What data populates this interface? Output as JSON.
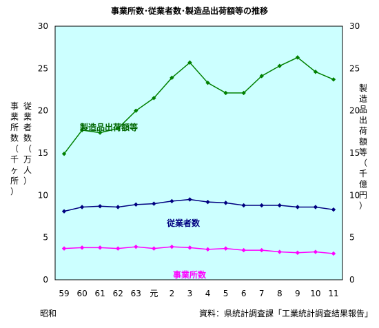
{
  "chart_data": {
    "type": "line",
    "title": "事業所数･従業者数･製造品出荷額等の推移",
    "categories": [
      "59",
      "60",
      "61",
      "62",
      "63",
      "元",
      "2",
      "3",
      "4",
      "5",
      "6",
      "7",
      "8",
      "9",
      "10",
      "11"
    ],
    "x_era_label": "昭和",
    "ylabel_left_col1": "従業者数（万人）",
    "ylabel_left_col2": "事業所数（千ヶ所）",
    "ylabel_right": "製造品出荷額等（千億円）",
    "ylim": [
      0,
      30
    ],
    "yticks_left": [
      "0",
      "5",
      "10",
      "15",
      "20",
      "25",
      "30"
    ],
    "yticks_right": [
      "0",
      "5",
      "10",
      "15",
      "20",
      "25",
      "30"
    ],
    "grid": false,
    "plot_background": "#ccffff",
    "source": "資料：県統計調査課「工業統計調査結果報告」",
    "series": [
      {
        "name": "製造品出荷額等",
        "color": "#008000",
        "label_color": "#006600",
        "values": [
          14.9,
          17.7,
          17.4,
          17.9,
          20.0,
          21.5,
          23.9,
          25.7,
          23.3,
          22.1,
          22.1,
          24.1,
          25.3,
          26.3,
          24.6,
          23.7
        ]
      },
      {
        "name": "従業者数",
        "color": "#000080",
        "label_color": "#000080",
        "values": [
          8.1,
          8.6,
          8.7,
          8.6,
          8.9,
          9.0,
          9.3,
          9.5,
          9.2,
          9.1,
          8.8,
          8.8,
          8.8,
          8.6,
          8.6,
          8.3
        ]
      },
      {
        "name": "事業所数",
        "color": "#ff00ff",
        "label_color": "#ff00ff",
        "values": [
          3.7,
          3.8,
          3.8,
          3.7,
          3.9,
          3.7,
          3.9,
          3.8,
          3.6,
          3.7,
          3.5,
          3.5,
          3.3,
          3.2,
          3.3,
          3.1
        ]
      }
    ]
  }
}
